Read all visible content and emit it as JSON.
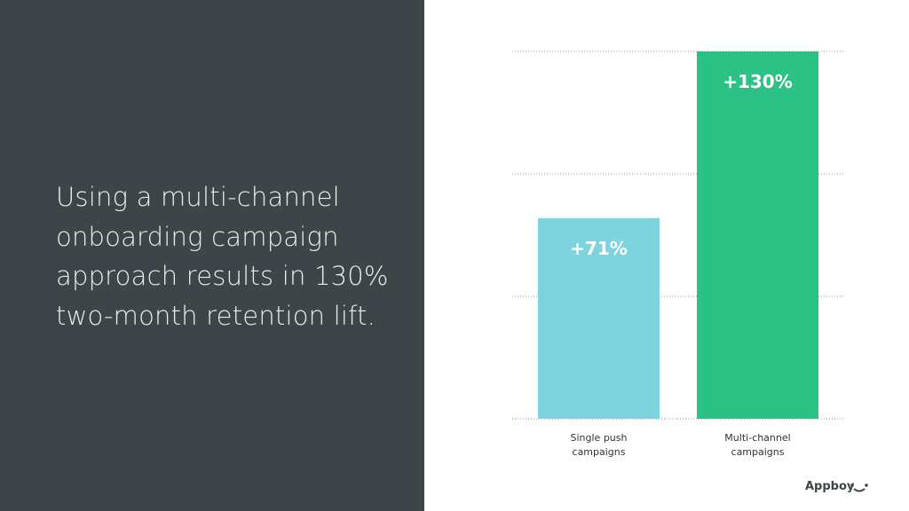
{
  "chart_data": {
    "type": "bar",
    "title": "Using a multi-channel\nonboarding campaign\napproach results in 130%\ntwo-month retention lift.",
    "categories": [
      "Single push\ncampaigns",
      "Multi-channel\ncampaigns"
    ],
    "values": [
      71,
      130
    ],
    "value_labels": [
      "+71%",
      "+130%"
    ],
    "colors": [
      "#7dd4df",
      "#2dc285"
    ],
    "ylim": [
      0,
      130
    ],
    "grid": true
  },
  "footer": {
    "brand": "Appboy"
  }
}
